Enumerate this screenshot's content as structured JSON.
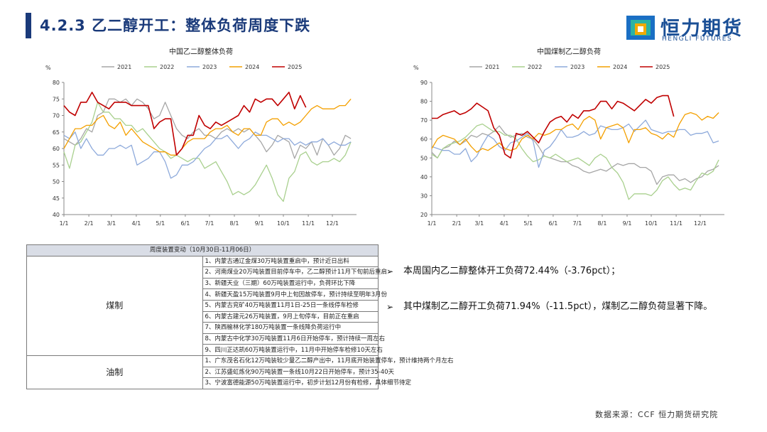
{
  "header": {
    "title": "4.2.3 乙二醇开工：整体负荷周度下跌"
  },
  "logo": {
    "name": "恒力期货",
    "sub": "HENGLI FUTURES"
  },
  "chart_data": [
    {
      "type": "line",
      "title": "中国乙二醇整体负荷",
      "unit_label": "%",
      "x_ticks": [
        "1/1",
        "2/1",
        "3/1",
        "4/1",
        "5/1",
        "6/1",
        "7/1",
        "8/1",
        "9/1",
        "10/1",
        "11/1",
        "12/1"
      ],
      "ylim": [
        40,
        80
      ],
      "y_ticks": [
        40,
        45,
        50,
        55,
        60,
        65,
        70,
        75,
        80
      ],
      "legend_position": "top",
      "grid": false,
      "x_range": [
        1,
        53
      ],
      "series": [
        {
          "name": "2021",
          "color": "#a6a6a6",
          "x": [
            1,
            2,
            3,
            4,
            5,
            6,
            7,
            8,
            9,
            10,
            11,
            12,
            13,
            14,
            15,
            16,
            17,
            18,
            19,
            20,
            21,
            22,
            23,
            24,
            25,
            26,
            27,
            28,
            29,
            30,
            31,
            32,
            33,
            34,
            35,
            36,
            37,
            38,
            39,
            40,
            41,
            42,
            43,
            44,
            45,
            46,
            47,
            48,
            49,
            50,
            51,
            52
          ],
          "values": [
            63,
            62,
            61,
            63,
            66,
            65,
            70,
            71,
            75,
            75,
            74,
            75,
            73,
            75,
            74,
            72,
            69,
            70,
            74,
            70,
            66,
            64,
            63,
            65,
            66,
            64,
            64,
            63,
            65,
            66,
            65,
            66,
            65,
            66,
            64,
            62,
            59,
            61,
            64,
            63,
            62,
            57,
            61,
            60,
            62,
            58,
            63,
            61,
            58,
            60,
            64,
            63
          ]
        },
        {
          "name": "2022",
          "color": "#a9d08e",
          "x": [
            1,
            2,
            3,
            4,
            5,
            6,
            7,
            8,
            9,
            10,
            11,
            12,
            13,
            14,
            15,
            16,
            17,
            18,
            19,
            20,
            21,
            22,
            23,
            24,
            25,
            26,
            27,
            28,
            29,
            30,
            31,
            32,
            33,
            34,
            35,
            36,
            37,
            38,
            39,
            40,
            41,
            42,
            43,
            44,
            45,
            46,
            47,
            48,
            49,
            50,
            51,
            52
          ],
          "values": [
            59,
            54,
            61,
            62,
            65,
            68,
            74,
            71,
            71,
            69,
            69,
            67,
            67,
            65,
            66,
            64,
            62,
            60,
            59,
            57,
            58,
            57,
            56,
            57,
            57,
            54,
            55,
            56,
            53,
            50,
            46,
            47,
            46,
            47,
            49,
            52,
            55,
            51,
            46,
            44,
            51,
            53,
            58,
            59,
            56,
            55,
            56,
            56,
            57,
            56,
            58,
            62
          ]
        },
        {
          "name": "2023",
          "color": "#8eaadb",
          "x": [
            1,
            2,
            3,
            4,
            5,
            6,
            7,
            8,
            9,
            10,
            11,
            12,
            13,
            14,
            15,
            16,
            17,
            18,
            19,
            20,
            21,
            22,
            23,
            24,
            25,
            26,
            27,
            28,
            29,
            30,
            31,
            32,
            33,
            34,
            35,
            36,
            37,
            38,
            39,
            40,
            41,
            42,
            43,
            44,
            45,
            46,
            47,
            48,
            49,
            50,
            51,
            52
          ],
          "values": [
            64,
            63,
            65,
            60,
            63,
            60,
            58,
            58,
            60,
            60,
            61,
            60,
            61,
            55,
            56,
            57,
            59,
            59,
            56,
            51,
            52,
            55,
            55,
            56,
            58,
            60,
            61,
            63,
            63,
            64,
            62,
            60,
            62,
            63,
            65,
            64,
            64,
            63,
            62,
            63,
            63,
            61,
            62,
            61,
            62,
            62,
            63,
            61,
            62,
            61,
            61,
            62
          ]
        },
        {
          "name": "2024",
          "color": "#f4b183",
          "strokeColor": "#f4a000",
          "x": [
            1,
            2,
            3,
            4,
            5,
            6,
            7,
            8,
            9,
            10,
            11,
            12,
            13,
            14,
            15,
            16,
            17,
            18,
            19,
            20,
            21,
            22,
            23,
            24,
            25,
            26,
            27,
            28,
            29,
            30,
            31,
            32,
            33,
            34,
            35,
            36,
            37,
            38,
            39,
            40,
            41,
            42,
            43,
            44,
            45,
            46,
            47,
            48,
            49,
            50,
            51,
            52
          ],
          "values": [
            60,
            63,
            66,
            66,
            67,
            67,
            69,
            70,
            67,
            66,
            68,
            64,
            66,
            64,
            62,
            61,
            60,
            59,
            59,
            58,
            58,
            60,
            62,
            63,
            63,
            63,
            65,
            66,
            66,
            67,
            65,
            64,
            66,
            66,
            64,
            64,
            68,
            69,
            69,
            67,
            68,
            67,
            68,
            70,
            72,
            73,
            72,
            72,
            72,
            73,
            73,
            75
          ]
        },
        {
          "name": "2025",
          "color": "#c00000",
          "x": [
            1,
            2,
            3,
            4,
            5,
            6,
            7,
            8,
            9,
            10,
            11,
            12,
            13,
            14,
            15,
            16,
            17,
            18,
            19,
            20,
            21,
            22,
            23,
            24,
            25,
            26,
            27,
            28,
            29,
            30,
            31,
            32,
            33,
            34,
            35,
            36,
            37,
            38,
            39,
            40,
            41,
            42,
            43,
            44
          ],
          "values": [
            73,
            71,
            70,
            74,
            74,
            77,
            74,
            73,
            72,
            74,
            74,
            74,
            73,
            73,
            73,
            73,
            66,
            68,
            69,
            69,
            58,
            60,
            64,
            64,
            70,
            67,
            66,
            68,
            67,
            68,
            69,
            70,
            73,
            71,
            75,
            74,
            75,
            75,
            73,
            75,
            77,
            72,
            76,
            72.44
          ]
        }
      ]
    },
    {
      "type": "line",
      "title": "中国煤制乙二醇负荷",
      "unit_label": "%",
      "x_ticks": [
        "1/1",
        "2/1",
        "3/1",
        "4/1",
        "5/1",
        "6/1",
        "7/1",
        "8/1",
        "9/1",
        "10/1",
        "11/1",
        "12/1"
      ],
      "ylim": [
        20,
        90
      ],
      "y_ticks": [
        20,
        30,
        40,
        50,
        60,
        70,
        80,
        90
      ],
      "legend_position": "top",
      "grid": false,
      "x_range": [
        1,
        53
      ],
      "series": [
        {
          "name": "2021",
          "color": "#a6a6a6",
          "x": [
            1,
            2,
            3,
            4,
            5,
            6,
            7,
            8,
            9,
            10,
            11,
            12,
            13,
            14,
            15,
            16,
            17,
            18,
            19,
            20,
            21,
            22,
            23,
            24,
            25,
            26,
            27,
            28,
            29,
            30,
            31,
            32,
            33,
            34,
            35,
            36,
            37,
            38,
            39,
            40,
            41,
            42,
            43,
            44,
            45,
            46,
            47,
            48,
            49,
            50,
            51,
            52
          ],
          "values": [
            53,
            50,
            55,
            56,
            59,
            57,
            59,
            62,
            61,
            63,
            62,
            64,
            67,
            63,
            61,
            62,
            63,
            61,
            60,
            56,
            51,
            50,
            49,
            48,
            48,
            46,
            45,
            43,
            42,
            43,
            44,
            43,
            45,
            47,
            46,
            47,
            47,
            45,
            45,
            43,
            36,
            40,
            41,
            41,
            38,
            39,
            37,
            39,
            40,
            43,
            44,
            46
          ]
        },
        {
          "name": "2022",
          "color": "#a9d08e",
          "x": [
            1,
            2,
            3,
            4,
            5,
            6,
            7,
            8,
            9,
            10,
            11,
            12,
            13,
            14,
            15,
            16,
            17,
            18,
            19,
            20,
            21,
            22,
            23,
            24,
            25,
            26,
            27,
            28,
            29,
            30,
            31,
            32,
            33,
            34,
            35,
            36,
            37,
            38,
            39,
            40,
            41,
            42,
            43,
            44,
            45,
            46,
            47,
            48,
            49,
            50,
            51,
            52
          ],
          "values": [
            52,
            50,
            55,
            57,
            58,
            59,
            61,
            64,
            67,
            68,
            66,
            64,
            64,
            62,
            62,
            60,
            55,
            51,
            48,
            49,
            51,
            50,
            52,
            50,
            48,
            49,
            50,
            48,
            46,
            50,
            52,
            50,
            45,
            42,
            37,
            28,
            31,
            31,
            31,
            30,
            33,
            38,
            40,
            36,
            33,
            34,
            33,
            38,
            42,
            41,
            43,
            49
          ]
        },
        {
          "name": "2023",
          "color": "#8eaadb",
          "x": [
            1,
            2,
            3,
            4,
            5,
            6,
            7,
            8,
            9,
            10,
            11,
            12,
            13,
            14,
            15,
            16,
            17,
            18,
            19,
            20,
            21,
            22,
            23,
            24,
            25,
            26,
            27,
            28,
            29,
            30,
            31,
            32,
            33,
            34,
            35,
            36,
            37,
            38,
            39,
            40,
            41,
            42,
            43,
            44,
            45,
            46,
            47,
            48,
            49,
            50,
            51,
            52
          ],
          "values": [
            56,
            55,
            54,
            54,
            52,
            52,
            55,
            48,
            51,
            57,
            62,
            60,
            56,
            54,
            58,
            59,
            61,
            63,
            59,
            45,
            54,
            56,
            60,
            65,
            61,
            61,
            62,
            64,
            62,
            63,
            67,
            66,
            65,
            65,
            66,
            68,
            64,
            67,
            70,
            65,
            64,
            63,
            64,
            64,
            65,
            65,
            62,
            63,
            63,
            64,
            58,
            59
          ]
        },
        {
          "name": "2024",
          "color": "#f4b183",
          "strokeColor": "#f4a000",
          "x": [
            1,
            2,
            3,
            4,
            5,
            6,
            7,
            8,
            9,
            10,
            11,
            12,
            13,
            14,
            15,
            16,
            17,
            18,
            19,
            20,
            21,
            22,
            23,
            24,
            25,
            26,
            27,
            28,
            29,
            30,
            31,
            32,
            33,
            34,
            35,
            36,
            37,
            38,
            39,
            40,
            41,
            42,
            43,
            44,
            45,
            46,
            47,
            48,
            49,
            50,
            51,
            52
          ],
          "values": [
            55,
            60,
            62,
            61,
            60,
            57,
            60,
            56,
            53,
            55,
            54,
            56,
            58,
            55,
            54,
            55,
            60,
            62,
            60,
            63,
            62,
            63,
            65,
            65,
            67,
            68,
            65,
            70,
            72,
            70,
            60,
            66,
            67,
            68,
            66,
            58,
            65,
            65,
            66,
            63,
            62,
            60,
            63,
            61,
            68,
            73,
            74,
            73,
            70,
            72,
            71,
            74
          ]
        },
        {
          "name": "2025",
          "color": "#c00000",
          "x": [
            1,
            2,
            3,
            4,
            5,
            6,
            7,
            8,
            9,
            10,
            11,
            12,
            13,
            14,
            15,
            16,
            17,
            18,
            19,
            20,
            21,
            22,
            23,
            24,
            25,
            26,
            27,
            28,
            29,
            30,
            31,
            32,
            33,
            34,
            35,
            36,
            37,
            38,
            39,
            40,
            41,
            42,
            43,
            44
          ],
          "values": [
            71,
            71,
            73,
            74,
            75,
            73,
            74,
            76,
            79,
            77,
            75,
            66,
            62,
            52,
            50,
            63,
            62,
            64,
            61,
            58,
            64,
            69,
            71,
            72,
            69,
            73,
            71,
            75,
            75,
            76,
            80,
            80,
            76,
            80,
            79,
            77,
            75,
            78,
            81,
            79,
            82,
            83,
            83,
            71.94
          ]
        }
      ]
    }
  ],
  "table": {
    "header": "周度装置变动（10月30日-11月06日）",
    "groups": [
      {
        "category": "煤制",
        "rows": [
          "1、内蒙古通辽金煤30万吨装置重启中，预计近日出料",
          "2、河南煤业20万吨装置目前停车中，乙二醇预计11月下旬前后重启",
          "3、新疆天业（三期）60万吨装置运行中，负荷环比下降",
          "4、新疆天盈15万吨装置9月中上旬因故停车，预计持续至明年3月份",
          "5、内蒙古兖矿40万吨装置11月1日-25日一条线停车检修",
          "6、内蒙古建元26万吨装置，9月上旬停车，目前正在重启",
          "7、陕西榆林化学180万吨装置一条线降负荷运行中",
          "8、内蒙古中化学30万吨装置11月6日开始停车，预计持续一周左右",
          "9、四川正达凯60万吨装置运行中，11月中开始停车检修10天左右"
        ]
      },
      {
        "category": "油制",
        "rows": [
          "1、广东茂名石化12万吨装较少量乙二醇产出中，11月底开始装置停车，预计维持两个月左右",
          "2、江苏盛虹炼化90万吨装置一条线10月22日开始停车，预计35-40天",
          "3、宁波富德能源50万吨装置运行中，初步计划12月份有检修，具体细节待定"
        ]
      }
    ]
  },
  "bullets": [
    "本周国内乙二醇整体开工负荷72.44%（-3.76pct）；",
    "其中煤制乙二醇开工负荷71.94%（-11.5pct），煤制乙二醇负荷显著下降。"
  ],
  "bullet_icon": "➢",
  "source": "数据来源：CCF  恒力期货研究院"
}
